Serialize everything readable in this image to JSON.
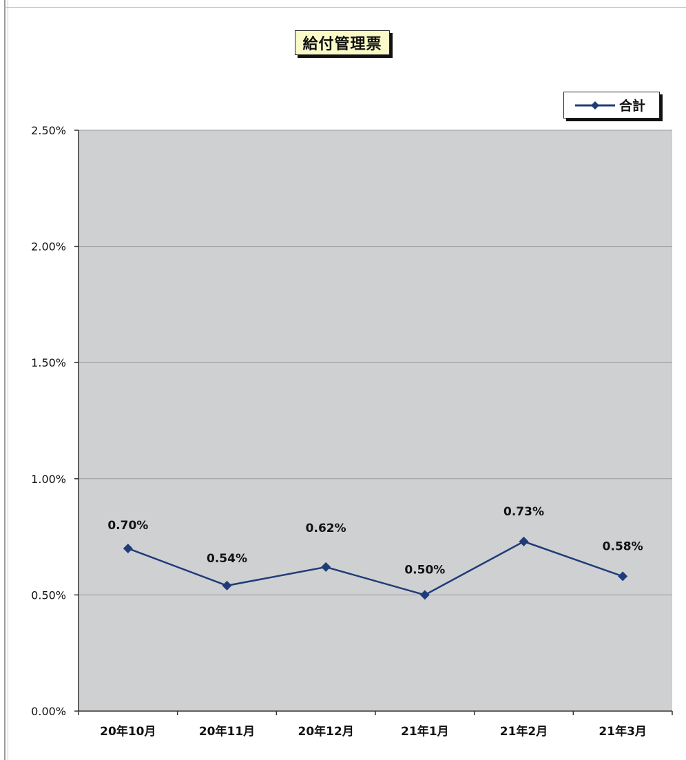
{
  "title": "給付管理票",
  "chart_data": {
    "type": "line",
    "categories": [
      "20年10月",
      "20年11月",
      "20年12月",
      "21年1月",
      "21年2月",
      "21年3月"
    ],
    "series": [
      {
        "name": "合計",
        "values": [
          0.7,
          0.54,
          0.62,
          0.5,
          0.73,
          0.58
        ],
        "labels": [
          "0.70%",
          "0.54%",
          "0.62%",
          "0.50%",
          "0.73%",
          "0.58%"
        ],
        "color": "#1f3c78",
        "marker": "diamond"
      }
    ],
    "yticks": [
      "0.00%",
      "0.50%",
      "1.00%",
      "1.50%",
      "2.00%",
      "2.50%"
    ],
    "ytick_values": [
      0,
      0.5,
      1.0,
      1.5,
      2.0,
      2.5
    ],
    "ylim": [
      0,
      2.5
    ],
    "grid": true,
    "legend": "top-right",
    "plot_background": "#cfd0d2",
    "gridline_color": "#9a9a9a"
  }
}
